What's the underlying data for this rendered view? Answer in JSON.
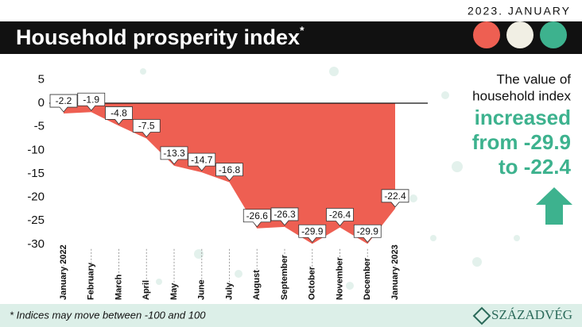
{
  "header": {
    "date": "2023. JANUARY",
    "title": "Household prosperity index",
    "title_mark": "*"
  },
  "side_note": {
    "lines": [
      "The value of",
      "household index"
    ],
    "highlight": [
      "increased",
      "from -29.9",
      "to -22.4"
    ]
  },
  "footnote": "* Indices may move between -100 and 100",
  "logo": "SZÁZADVÉG",
  "chart_data": {
    "type": "area",
    "categories": [
      "January 2022",
      "February",
      "March",
      "April",
      "May",
      "June",
      "July",
      "August",
      "September",
      "October",
      "November",
      "December",
      "January 2023"
    ],
    "values": [
      -2.2,
      -1.9,
      -4.8,
      -7.5,
      -13.3,
      -14.7,
      -16.8,
      -26.6,
      -26.3,
      -29.9,
      -26.4,
      -29.9,
      -22.4
    ],
    "color": "#ee5f52",
    "ylim": [
      -31,
      7
    ],
    "yticks": [
      5,
      0,
      -5,
      -10,
      -15,
      -20,
      -25,
      -30
    ]
  }
}
